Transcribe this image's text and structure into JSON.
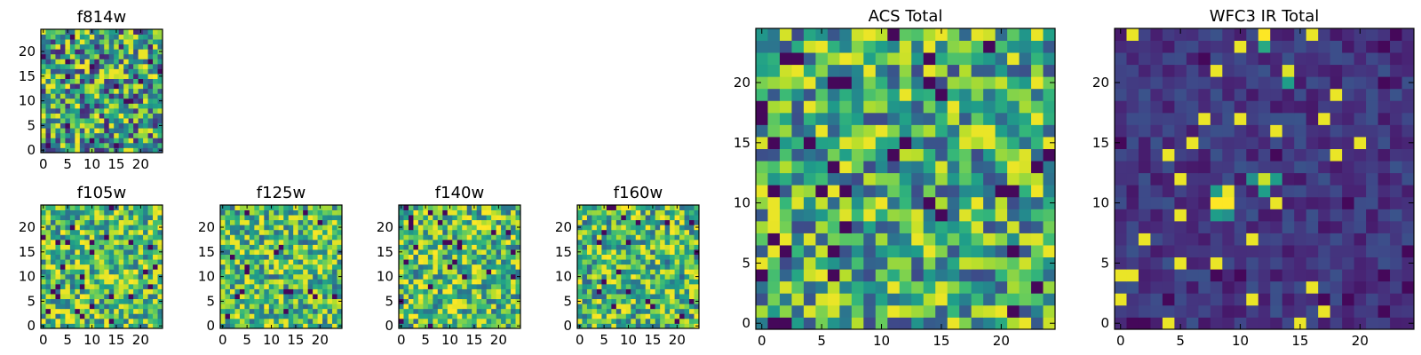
{
  "chart_data": [
    {
      "id": "f814w",
      "type": "heatmap",
      "title": "f814w",
      "colormap": "viridis",
      "grid_size": [
        25,
        25
      ],
      "xlim": [
        0,
        25
      ],
      "ylim": [
        0,
        25
      ],
      "xticks": [
        0,
        5,
        10,
        15,
        20
      ],
      "yticks": [
        0,
        5,
        10,
        15,
        20
      ],
      "value_range": [
        0,
        1
      ],
      "mean": 0.55,
      "spread": 0.45,
      "seed": 11
    },
    {
      "id": "f105w",
      "type": "heatmap",
      "title": "f105w",
      "colormap": "viridis",
      "grid_size": [
        25,
        25
      ],
      "xlim": [
        0,
        25
      ],
      "ylim": [
        0,
        25
      ],
      "xticks": [
        0,
        5,
        10,
        15,
        20
      ],
      "yticks": [
        0,
        5,
        10,
        15,
        20
      ],
      "value_range": [
        0,
        1
      ],
      "mean": 0.68,
      "spread": 0.35,
      "seed": 23
    },
    {
      "id": "f125w",
      "type": "heatmap",
      "title": "f125w",
      "colormap": "viridis",
      "grid_size": [
        25,
        25
      ],
      "xlim": [
        0,
        25
      ],
      "ylim": [
        0,
        25
      ],
      "xticks": [
        0,
        5,
        10,
        15,
        20
      ],
      "yticks": [
        0,
        5,
        10,
        15,
        20
      ],
      "value_range": [
        0,
        1
      ],
      "mean": 0.66,
      "spread": 0.35,
      "seed": 37
    },
    {
      "id": "f140w",
      "type": "heatmap",
      "title": "f140w",
      "colormap": "viridis",
      "grid_size": [
        25,
        25
      ],
      "xlim": [
        0,
        25
      ],
      "ylim": [
        0,
        25
      ],
      "xticks": [
        0,
        5,
        10,
        15,
        20
      ],
      "yticks": [
        0,
        5,
        10,
        15,
        20
      ],
      "value_range": [
        0,
        1
      ],
      "mean": 0.68,
      "spread": 0.36,
      "seed": 41
    },
    {
      "id": "f160w",
      "type": "heatmap",
      "title": "f160w",
      "colormap": "viridis",
      "grid_size": [
        25,
        25
      ],
      "xlim": [
        0,
        25
      ],
      "ylim": [
        0,
        25
      ],
      "xticks": [
        0,
        5,
        10,
        15,
        20
      ],
      "yticks": [
        0,
        5,
        10,
        15,
        20
      ],
      "value_range": [
        0,
        1
      ],
      "mean": 0.66,
      "spread": 0.36,
      "seed": 53
    },
    {
      "id": "acs-total",
      "type": "heatmap",
      "title": "ACS Total",
      "colormap": "viridis",
      "grid_size": [
        25,
        25
      ],
      "xlim": [
        0,
        25
      ],
      "ylim": [
        0,
        25
      ],
      "xticks": [
        0,
        5,
        10,
        15,
        20
      ],
      "yticks": [
        0,
        5,
        10,
        15,
        20
      ],
      "value_range": [
        0,
        1
      ],
      "mean": 0.6,
      "spread": 0.38,
      "seed": 67
    },
    {
      "id": "wfc3-ir-total",
      "type": "heatmap",
      "title": "WFC3 IR Total",
      "colormap": "viridis",
      "grid_size": [
        25,
        25
      ],
      "xlim": [
        0,
        25
      ],
      "ylim": [
        0,
        25
      ],
      "xticks": [
        0,
        5,
        10,
        15,
        20
      ],
      "yticks": [
        0,
        5,
        10,
        15,
        20
      ],
      "value_range": [
        0,
        1
      ],
      "mean": 0.16,
      "spread": 0.1,
      "seed": 79,
      "bright_pixels": [
        {
          "x": 12,
          "y": 24,
          "value": 1.0
        },
        {
          "x": 14,
          "y": 21,
          "value": 0.95
        },
        {
          "x": 12,
          "y": 12,
          "value": 0.92
        },
        {
          "x": 8,
          "y": 10,
          "value": 1.0
        },
        {
          "x": 9,
          "y": 10,
          "value": 1.0
        },
        {
          "x": 12,
          "y": 23,
          "value": 0.6
        },
        {
          "x": 12,
          "y": 11,
          "value": 0.55
        },
        {
          "x": 11,
          "y": 12,
          "value": 0.5
        },
        {
          "x": 13,
          "y": 12,
          "value": 0.55
        },
        {
          "x": 8,
          "y": 11,
          "value": 0.55
        },
        {
          "x": 8,
          "y": 9,
          "value": 0.55
        },
        {
          "x": 9,
          "y": 9,
          "value": 0.5
        },
        {
          "x": 14,
          "y": 20,
          "value": 0.55
        }
      ]
    }
  ]
}
